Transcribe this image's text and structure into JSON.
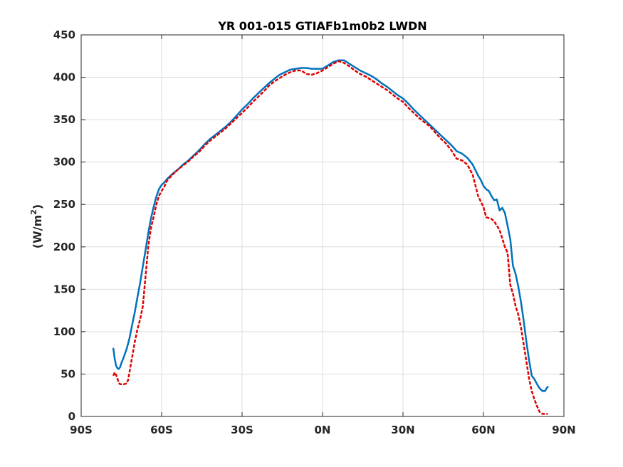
{
  "chart_data": {
    "type": "line",
    "title": "YR 001-015 GTIAFb1m0b2 LWDN",
    "ylabel_base": "(W/m",
    "ylabel_sup": "2",
    "ylabel_end": ")",
    "xlabel": "",
    "xlim": [
      -90,
      90
    ],
    "ylim": [
      0,
      450
    ],
    "grid": true,
    "x_ticks": [
      {
        "value": -90,
        "label": "90S"
      },
      {
        "value": -60,
        "label": "60S"
      },
      {
        "value": -30,
        "label": "30S"
      },
      {
        "value": 0,
        "label": "0N"
      },
      {
        "value": 30,
        "label": "30N"
      },
      {
        "value": 60,
        "label": "60N"
      },
      {
        "value": 90,
        "label": "90N"
      }
    ],
    "y_ticks": [
      0,
      50,
      100,
      150,
      200,
      250,
      300,
      350,
      400,
      450
    ],
    "series": [
      {
        "style": "solid",
        "color": "#0072BD",
        "points": [
          [
            -78,
            80
          ],
          [
            -77.5,
            68
          ],
          [
            -77,
            60
          ],
          [
            -76.5,
            57
          ],
          [
            -76,
            56
          ],
          [
            -75.5,
            58
          ],
          [
            -75,
            63
          ],
          [
            -74,
            71
          ],
          [
            -73,
            80
          ],
          [
            -72,
            92
          ],
          [
            -71,
            108
          ],
          [
            -70,
            123
          ],
          [
            -69,
            141
          ],
          [
            -68,
            158
          ],
          [
            -67,
            177
          ],
          [
            -66,
            196
          ],
          [
            -65,
            216
          ],
          [
            -64,
            233
          ],
          [
            -63,
            247
          ],
          [
            -62,
            259
          ],
          [
            -61,
            268
          ],
          [
            -60,
            273
          ],
          [
            -59,
            276
          ],
          [
            -58,
            280
          ],
          [
            -56,
            286
          ],
          [
            -54,
            291
          ],
          [
            -52,
            297
          ],
          [
            -50,
            302
          ],
          [
            -48,
            308
          ],
          [
            -46,
            314
          ],
          [
            -44,
            321
          ],
          [
            -42,
            327
          ],
          [
            -40,
            332
          ],
          [
            -38,
            337
          ],
          [
            -36,
            342
          ],
          [
            -34,
            348
          ],
          [
            -32,
            355
          ],
          [
            -30,
            362
          ],
          [
            -28,
            368
          ],
          [
            -26,
            375
          ],
          [
            -24,
            381
          ],
          [
            -22,
            387
          ],
          [
            -20,
            393
          ],
          [
            -18,
            398
          ],
          [
            -16,
            403
          ],
          [
            -14,
            406
          ],
          [
            -12,
            409
          ],
          [
            -10,
            410
          ],
          [
            -8,
            411
          ],
          [
            -6,
            411
          ],
          [
            -4,
            410
          ],
          [
            -2,
            410
          ],
          [
            0,
            410
          ],
          [
            2,
            414
          ],
          [
            4,
            418
          ],
          [
            6,
            420
          ],
          [
            8,
            420
          ],
          [
            10,
            416
          ],
          [
            12,
            412
          ],
          [
            14,
            408
          ],
          [
            16,
            405
          ],
          [
            18,
            402
          ],
          [
            20,
            398
          ],
          [
            22,
            393
          ],
          [
            24,
            389
          ],
          [
            26,
            384
          ],
          [
            28,
            379
          ],
          [
            30,
            375
          ],
          [
            32,
            369
          ],
          [
            34,
            362
          ],
          [
            36,
            356
          ],
          [
            38,
            350
          ],
          [
            40,
            344
          ],
          [
            42,
            338
          ],
          [
            44,
            332
          ],
          [
            46,
            326
          ],
          [
            48,
            320
          ],
          [
            50,
            313
          ],
          [
            52,
            310
          ],
          [
            54,
            305
          ],
          [
            56,
            297
          ],
          [
            58,
            284
          ],
          [
            59,
            279
          ],
          [
            60,
            272
          ],
          [
            61,
            268
          ],
          [
            62,
            266
          ],
          [
            63,
            260
          ],
          [
            64,
            255
          ],
          [
            65,
            256
          ],
          [
            66,
            243
          ],
          [
            67,
            246
          ],
          [
            68,
            240
          ],
          [
            69,
            225
          ],
          [
            70,
            209
          ],
          [
            71,
            178
          ],
          [
            72,
            168
          ],
          [
            73,
            153
          ],
          [
            74,
            135
          ],
          [
            75,
            113
          ],
          [
            76,
            88
          ],
          [
            77,
            67
          ],
          [
            78,
            48
          ],
          [
            79,
            44
          ],
          [
            80,
            38
          ],
          [
            81,
            33
          ],
          [
            82,
            30
          ],
          [
            83,
            30
          ],
          [
            83.5,
            33
          ],
          [
            84,
            35
          ]
        ]
      },
      {
        "style": "dashed",
        "color": "#E00000",
        "points": [
          [
            -78,
            48
          ],
          [
            -77.5,
            52
          ],
          [
            -77,
            49
          ],
          [
            -76.5,
            45
          ],
          [
            -76,
            40
          ],
          [
            -75.5,
            38
          ],
          [
            -75,
            38
          ],
          [
            -74,
            38
          ],
          [
            -73,
            39
          ],
          [
            -72.5,
            43
          ],
          [
            -72,
            52
          ],
          [
            -71,
            70
          ],
          [
            -70,
            88
          ],
          [
            -69,
            103
          ],
          [
            -68,
            115
          ],
          [
            -67,
            130
          ],
          [
            -66,
            165
          ],
          [
            -65,
            200
          ],
          [
            -64,
            222
          ],
          [
            -63,
            235
          ],
          [
            -62,
            250
          ],
          [
            -61,
            260
          ],
          [
            -60,
            266
          ],
          [
            -59,
            271
          ],
          [
            -58,
            278
          ],
          [
            -56,
            285
          ],
          [
            -54,
            291
          ],
          [
            -52,
            296
          ],
          [
            -50,
            301
          ],
          [
            -48,
            307
          ],
          [
            -46,
            312
          ],
          [
            -44,
            319
          ],
          [
            -42,
            325
          ],
          [
            -40,
            330
          ],
          [
            -38,
            335
          ],
          [
            -36,
            340
          ],
          [
            -34,
            346
          ],
          [
            -32,
            352
          ],
          [
            -30,
            358
          ],
          [
            -28,
            364
          ],
          [
            -26,
            371
          ],
          [
            -24,
            377
          ],
          [
            -22,
            383
          ],
          [
            -20,
            390
          ],
          [
            -18,
            395
          ],
          [
            -16,
            399
          ],
          [
            -14,
            403
          ],
          [
            -12,
            406
          ],
          [
            -10,
            408
          ],
          [
            -8,
            408
          ],
          [
            -6,
            404
          ],
          [
            -4,
            403
          ],
          [
            -2,
            405
          ],
          [
            0,
            408
          ],
          [
            2,
            412
          ],
          [
            4,
            416
          ],
          [
            6,
            419
          ],
          [
            8,
            417
          ],
          [
            10,
            413
          ],
          [
            12,
            408
          ],
          [
            14,
            404
          ],
          [
            16,
            401
          ],
          [
            18,
            397
          ],
          [
            20,
            393
          ],
          [
            22,
            389
          ],
          [
            24,
            385
          ],
          [
            26,
            380
          ],
          [
            28,
            375
          ],
          [
            30,
            371
          ],
          [
            32,
            364
          ],
          [
            34,
            358
          ],
          [
            36,
            352
          ],
          [
            38,
            347
          ],
          [
            40,
            342
          ],
          [
            42,
            335
          ],
          [
            44,
            328
          ],
          [
            46,
            322
          ],
          [
            48,
            314
          ],
          [
            50,
            304
          ],
          [
            52,
            302
          ],
          [
            54,
            297
          ],
          [
            56,
            285
          ],
          [
            58,
            260
          ],
          [
            60,
            247
          ],
          [
            61,
            235
          ],
          [
            62,
            234
          ],
          [
            63,
            233
          ],
          [
            64,
            230
          ],
          [
            65,
            225
          ],
          [
            66,
            220
          ],
          [
            67,
            210
          ],
          [
            68,
            200
          ],
          [
            69,
            193
          ],
          [
            70,
            155
          ],
          [
            71,
            145
          ],
          [
            72,
            130
          ],
          [
            73,
            120
          ],
          [
            74,
            105
          ],
          [
            75,
            85
          ],
          [
            76,
            65
          ],
          [
            77,
            45
          ],
          [
            78,
            30
          ],
          [
            79,
            20
          ],
          [
            80,
            12
          ],
          [
            81,
            5
          ],
          [
            82,
            3
          ],
          [
            83,
            3
          ],
          [
            84,
            3
          ]
        ]
      }
    ]
  }
}
